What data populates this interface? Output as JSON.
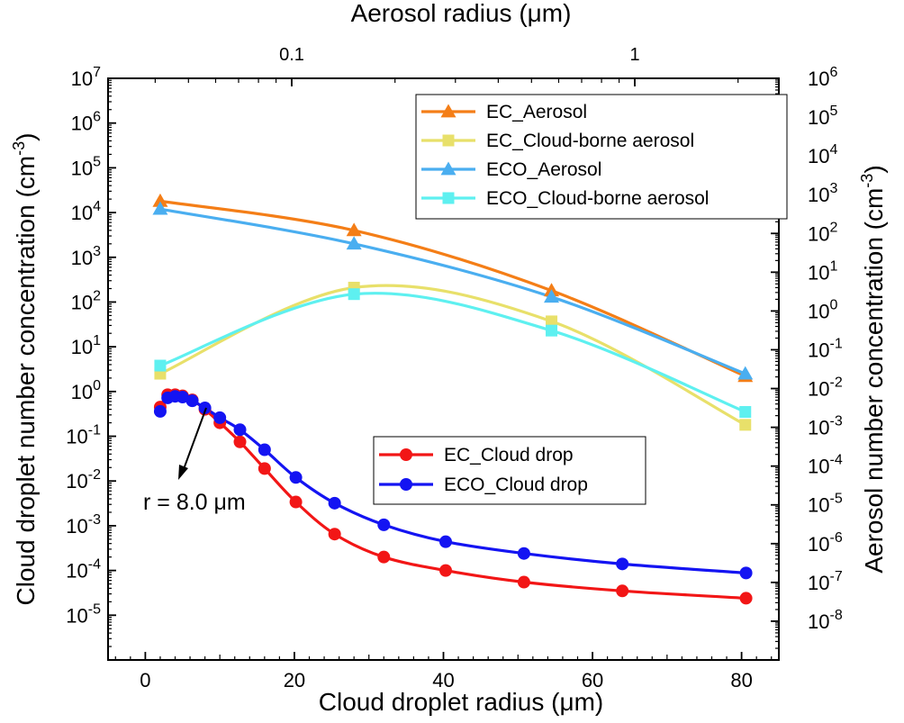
{
  "chart_data": {
    "type": "line",
    "title": "",
    "xlabel": "Cloud droplet radius (μm)",
    "ylabel_left_main": "Cloud droplet number concentration (cm",
    "ylabel_left_sup": "-3",
    "ylabel_left_close": ")",
    "ylabel_right_main": "Aerosol number concentration (cm",
    "ylabel_right_sup": "-3",
    "ylabel_right_close": ")",
    "xlabel_top": "Aerosol radius (μm)",
    "xlim": [
      -5,
      85
    ],
    "xticks": [
      0,
      20,
      40,
      60,
      80
    ],
    "xtick_labels": [
      "0",
      "20",
      "40",
      "60",
      "80"
    ],
    "top_axis": {
      "scale": "log",
      "ticks": [
        {
          "value": 0.1,
          "label": "0.1"
        },
        {
          "value": 1,
          "label": "1"
        }
      ]
    },
    "ylim_left_exp": [
      -6,
      7
    ],
    "ylim_right_exp": [
      -9,
      6
    ],
    "yscale": "log",
    "left_ticks_exp": [
      -5,
      -4,
      -3,
      -2,
      -1,
      0,
      1,
      2,
      3,
      4,
      5,
      6,
      7
    ],
    "right_ticks_exp": [
      -8,
      -7,
      -6,
      -5,
      -4,
      -3,
      -2,
      -1,
      0,
      1,
      2,
      3,
      4,
      5,
      6
    ],
    "tick_base": "10",
    "grid": false,
    "series": [
      {
        "name": "EC_Aerosol",
        "color": "#f47e17",
        "marker": "triangle",
        "axis": "left",
        "x": [
          2,
          28,
          54.5,
          80.5
        ],
        "y": [
          18000,
          4000,
          180,
          2.2
        ]
      },
      {
        "name": "EC_Cloud-borne aerosol",
        "color": "#e8e06a",
        "marker": "square",
        "axis": "left",
        "x": [
          2,
          28,
          54.5,
          80.5
        ],
        "y": [
          2.5,
          210,
          37,
          0.18
        ]
      },
      {
        "name": "ECO_Aerosol",
        "color": "#4aaef0",
        "marker": "triangle",
        "axis": "left",
        "x": [
          2,
          28,
          54.5,
          80.5
        ],
        "y": [
          12000,
          2000,
          130,
          2.5
        ]
      },
      {
        "name": "ECO_Cloud-borne aerosol",
        "color": "#5ef0f0",
        "marker": "square",
        "axis": "left",
        "x": [
          2,
          28,
          54.5,
          80.5
        ],
        "y": [
          3.8,
          150,
          23,
          0.35
        ]
      },
      {
        "name": "EC_Cloud drop",
        "color": "#f21616",
        "marker": "circle",
        "axis": "left",
        "x": [
          2,
          3,
          4,
          5,
          6.3,
          8,
          10,
          12.7,
          16,
          20.2,
          25.4,
          32,
          40.3,
          50.8,
          64,
          80.6
        ],
        "y": [
          0.45,
          0.85,
          0.85,
          0.8,
          0.65,
          0.4,
          0.2,
          0.075,
          0.019,
          0.0034,
          0.00065,
          0.0002,
          0.0001,
          5.5e-05,
          3.5e-05,
          2.4e-05
        ]
      },
      {
        "name": "ECO_Cloud drop",
        "color": "#1414f2",
        "marker": "circle",
        "axis": "left",
        "x": [
          2,
          3,
          4,
          5,
          6.3,
          8,
          10,
          12.7,
          16,
          20.2,
          25.4,
          32,
          40.3,
          50.8,
          64,
          80.6
        ],
        "y": [
          0.36,
          0.72,
          0.78,
          0.75,
          0.62,
          0.43,
          0.26,
          0.14,
          0.05,
          0.012,
          0.0032,
          0.00105,
          0.00044,
          0.00024,
          0.00014,
          8.8e-05
        ]
      }
    ],
    "legend_placement": "upper and middle right, two boxes",
    "annotation": {
      "text": "r = 8.0 μm",
      "x": 8,
      "y": 0.4
    }
  }
}
